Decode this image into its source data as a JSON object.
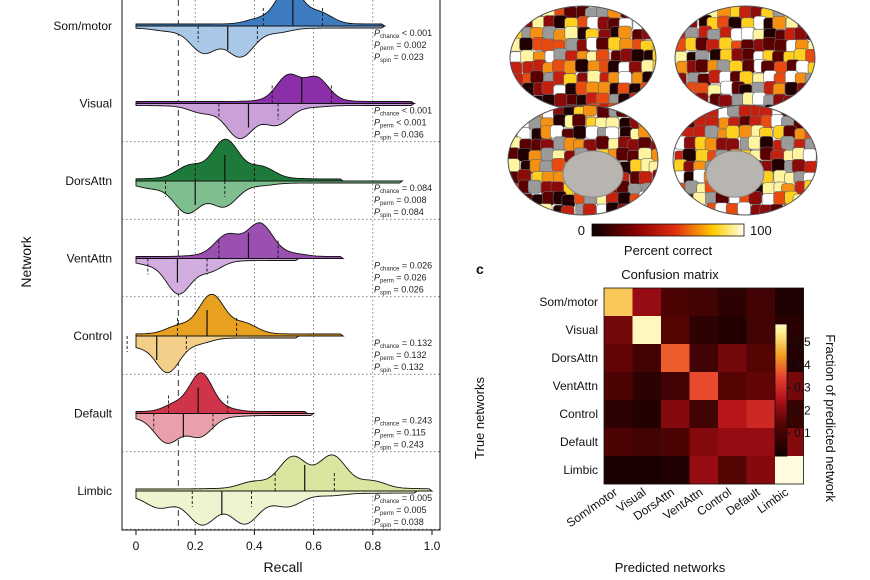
{
  "figure": {
    "panel_letter_c": "c",
    "violin_panel": {
      "y_axis_title": "Network",
      "x_axis_title": "Recall",
      "x_ticks": [
        "0",
        "0.2",
        "0.4",
        "0.6",
        "0.8",
        "1.0"
      ],
      "networks": [
        {
          "name": "Som/motor",
          "color": "#3d7cc0",
          "light": "#a9c8e8",
          "stats": {
            "chance": "< 0.001",
            "perm": "= 0.002",
            "spin": "= 0.023"
          }
        },
        {
          "name": "Visual",
          "color": "#8a2fa8",
          "light": "#c9a0d8",
          "stats": {
            "chance": "< 0.001",
            "perm": "< 0.001",
            "spin": "= 0.036"
          }
        },
        {
          "name": "DorsAttn",
          "color": "#1e7a3b",
          "light": "#7fbf8f",
          "stats": {
            "chance": "= 0.084",
            "perm": "= 0.008",
            "spin": "= 0.084"
          }
        },
        {
          "name": "VentAttn",
          "color": "#9b4fb0",
          "light": "#d2aee0",
          "stats": {
            "chance": "= 0.026",
            "perm": "= 0.026",
            "spin": "= 0.026"
          }
        },
        {
          "name": "Control",
          "color": "#e8a020",
          "light": "#f3cf8a",
          "stats": {
            "chance": "= 0.132",
            "perm": "= 0.132",
            "spin": "= 0.132"
          }
        },
        {
          "name": "Default",
          "color": "#d0344a",
          "light": "#eaa0aa",
          "stats": {
            "chance": "= 0.243",
            "perm": "= 0.115",
            "spin": "= 0.243"
          }
        },
        {
          "name": "Limbic",
          "color": "#d8e6a0",
          "light": "#eef4cf",
          "stats": {
            "chance": "= 0.005",
            "perm": "= 0.005",
            "spin": "= 0.038"
          }
        }
      ],
      "p_symbol": "P",
      "sub_chance": "chance",
      "sub_perm": "perm",
      "sub_spin": "spin"
    },
    "colorbar_brain": {
      "min_label": "0",
      "max_label": "100",
      "title": "Percent correct"
    },
    "confusion": {
      "title": "Confusion matrix",
      "y_axis_title": "True networks",
      "x_axis_title": "Predicted networks",
      "colorbar_title": "Fraction of predicted network",
      "colorbar_ticks": [
        "0.5",
        "0.4",
        "0.3",
        "0.2",
        "0.1"
      ],
      "labels": [
        "Som/motor",
        "Visual",
        "DorsAttn",
        "VentAttn",
        "Control",
        "Default",
        "Limbic"
      ]
    }
  },
  "chart_data": {
    "type": "heatmap",
    "title": "Confusion matrix",
    "xlabel": "Predicted networks",
    "ylabel": "True networks",
    "rows": [
      "Som/motor",
      "Visual",
      "DorsAttn",
      "VentAttn",
      "Control",
      "Default",
      "Limbic"
    ],
    "columns": [
      "Som/motor",
      "Visual",
      "DorsAttn",
      "VentAttn",
      "Control",
      "Default",
      "Limbic"
    ],
    "values": [
      [
        0.5,
        0.22,
        0.12,
        0.1,
        0.06,
        0.1,
        0.03
      ],
      [
        0.18,
        0.58,
        0.14,
        0.06,
        0.04,
        0.1,
        0.05
      ],
      [
        0.16,
        0.1,
        0.38,
        0.1,
        0.18,
        0.14,
        0.04
      ],
      [
        0.12,
        0.06,
        0.1,
        0.36,
        0.14,
        0.16,
        0.18
      ],
      [
        0.06,
        0.04,
        0.2,
        0.1,
        0.26,
        0.3,
        0.08
      ],
      [
        0.12,
        0.1,
        0.12,
        0.2,
        0.22,
        0.22,
        0.2
      ],
      [
        0.02,
        0.02,
        0.03,
        0.22,
        0.14,
        0.2,
        0.6
      ]
    ],
    "colorbar_range": [
      0,
      0.58
    ]
  }
}
